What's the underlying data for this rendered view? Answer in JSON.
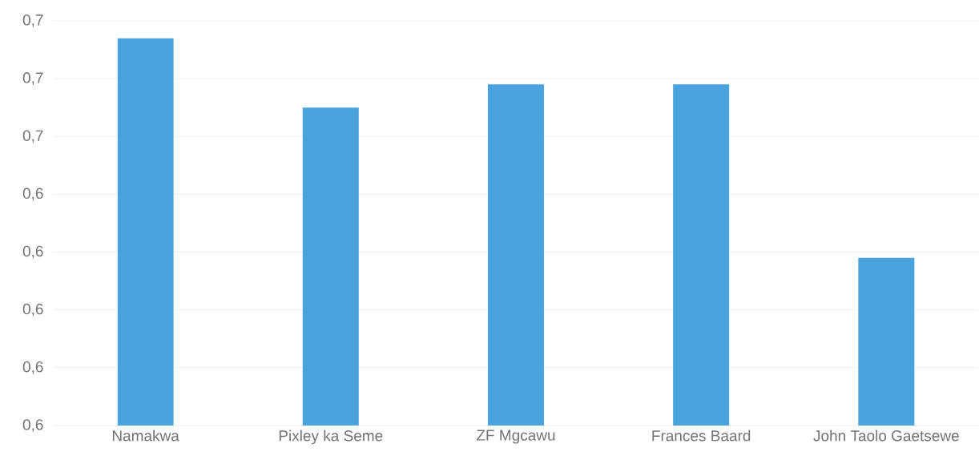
{
  "chart_data": {
    "type": "bar",
    "categories": [
      "Namakwa",
      "Pixley ka Seme",
      "ZF Mgcawu",
      "Frances Baard",
      "John Taolo Gaetsewe"
    ],
    "values": [
      0.667,
      0.655,
      0.659,
      0.659,
      0.629
    ],
    "color": "#4aa3df",
    "ylim": [
      0.6,
      0.67
    ],
    "yticks": [
      {
        "value": 0.6,
        "label": "0,6"
      },
      {
        "value": 0.61,
        "label": "0,6"
      },
      {
        "value": 0.62,
        "label": "0,6"
      },
      {
        "value": 0.63,
        "label": "0,6"
      },
      {
        "value": 0.64,
        "label": "0,6"
      },
      {
        "value": 0.65,
        "label": "0,7"
      },
      {
        "value": 0.66,
        "label": "0,7"
      },
      {
        "value": 0.67,
        "label": "0,7"
      }
    ],
    "grid": "y"
  }
}
